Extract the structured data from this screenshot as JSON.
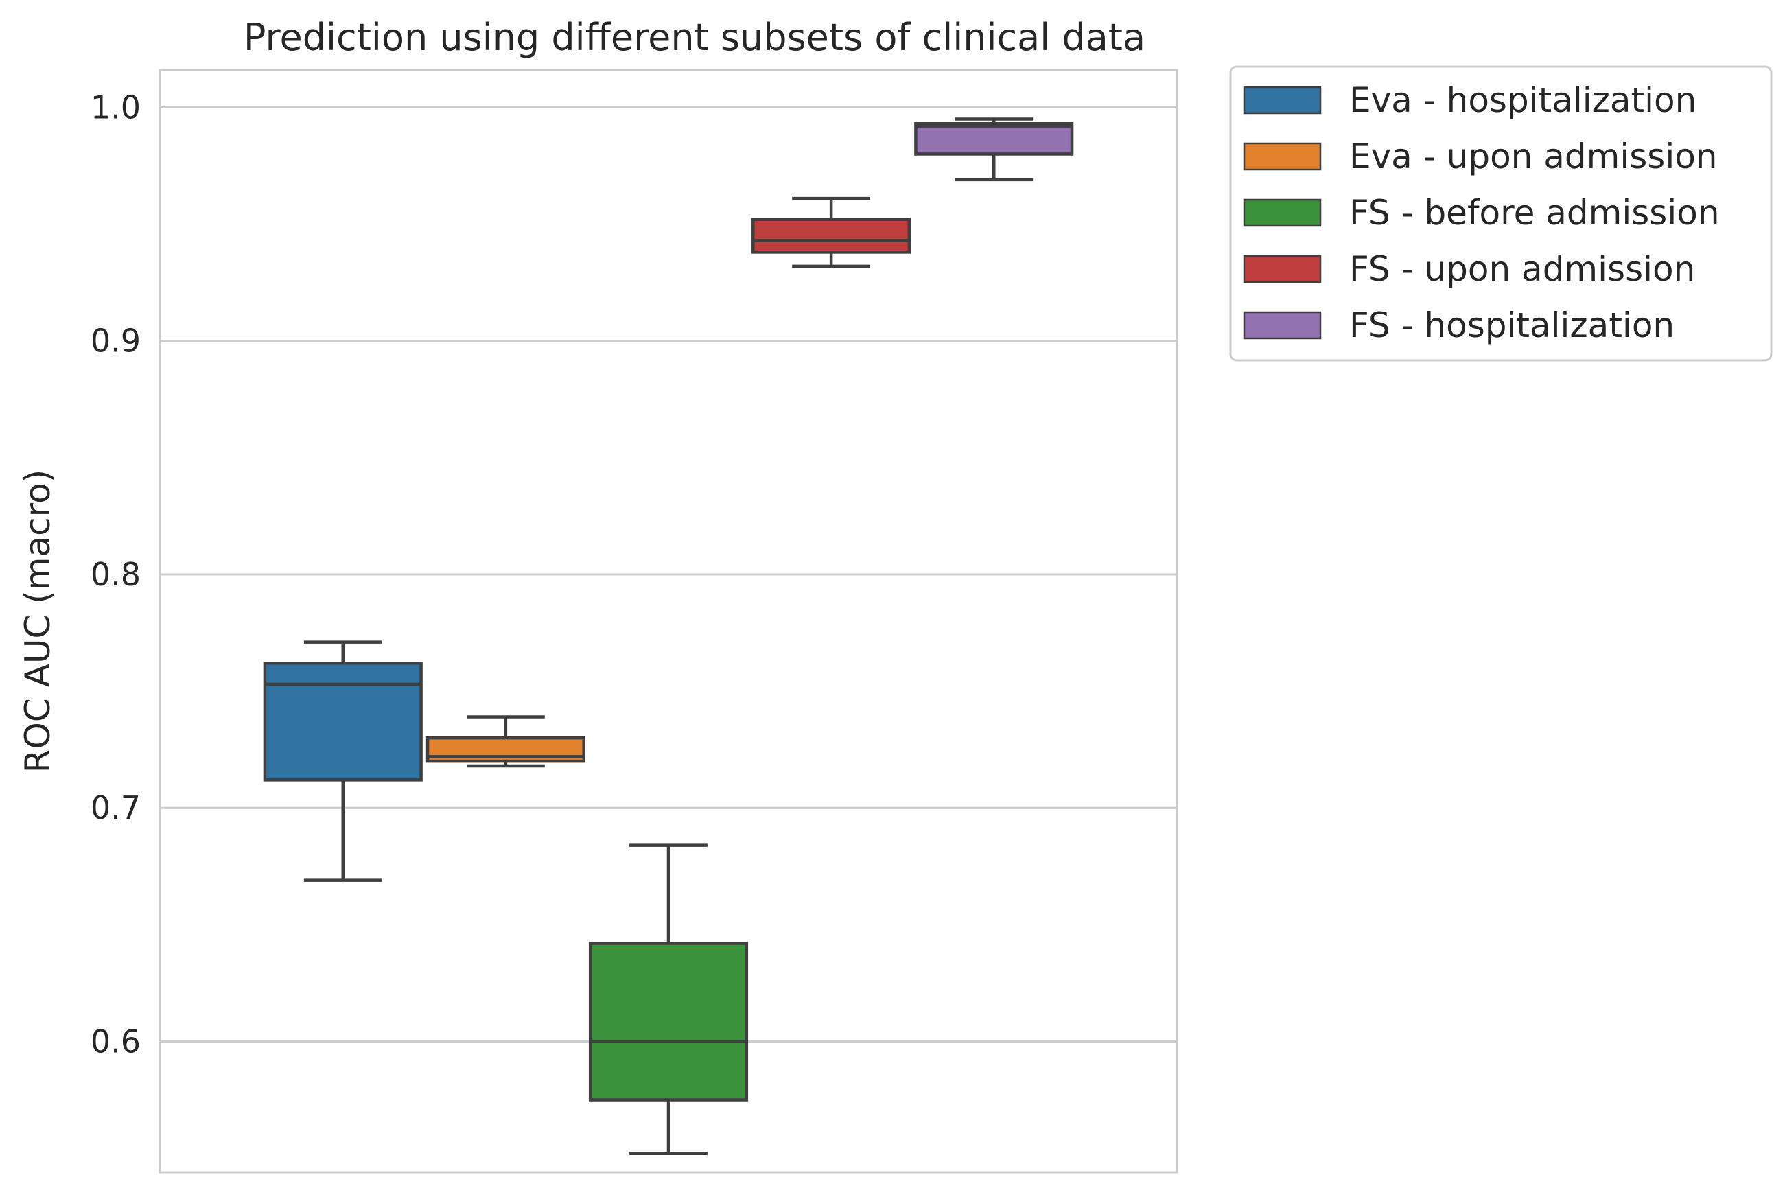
{
  "chart_data": {
    "type": "box",
    "title": "Prediction using different subsets of clinical data",
    "xlabel": "",
    "ylabel": "ROC AUC (macro)",
    "ylim": [
      0.544,
      1.016
    ],
    "yticks": [
      "0.6",
      "0.7",
      "0.8",
      "0.9",
      "1.0"
    ],
    "grid": true,
    "legend_position": "outside-top-right",
    "series": [
      {
        "name": "Eva - hospitalization",
        "color": "#3274a1",
        "whisker_low": 0.669,
        "q1": 0.712,
        "median": 0.753,
        "q3": 0.762,
        "whisker_high": 0.771
      },
      {
        "name": "Eva - upon admission",
        "color": "#e1812c",
        "whisker_low": 0.718,
        "q1": 0.72,
        "median": 0.722,
        "q3": 0.73,
        "whisker_high": 0.739
      },
      {
        "name": "FS - before admission",
        "color": "#3a923a",
        "whisker_low": 0.552,
        "q1": 0.575,
        "median": 0.6,
        "q3": 0.642,
        "whisker_high": 0.684
      },
      {
        "name": "FS - upon admission",
        "color": "#c03d3e",
        "whisker_low": 0.932,
        "q1": 0.938,
        "median": 0.943,
        "q3": 0.952,
        "whisker_high": 0.961
      },
      {
        "name": "FS - hospitalization",
        "color": "#9372b2",
        "whisker_low": 0.969,
        "q1": 0.98,
        "median": 0.992,
        "q3": 0.993,
        "whisker_high": 0.995
      }
    ]
  }
}
